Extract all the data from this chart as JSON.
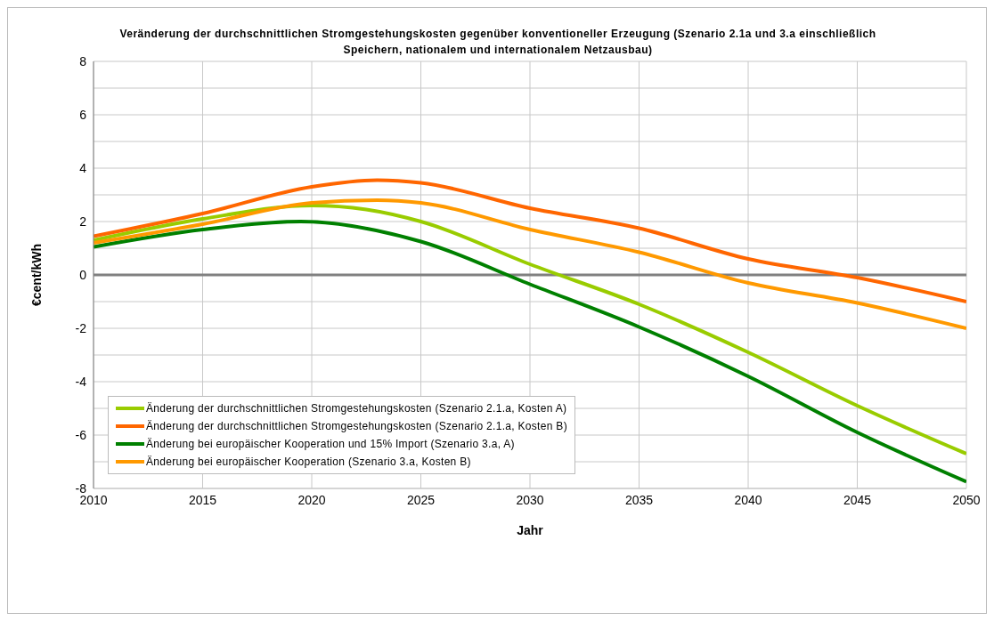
{
  "chart_data": {
    "type": "line",
    "title": "Veränderung der durchschnittlichen Stromgestehungskosten gegenüber konventioneller Erzeugung (Szenario 2.1a und 3.a einschließlich Speichern, nationalem und internationalem Netzausbau)",
    "xlabel": "Jahr",
    "ylabel": "€cent/kWh",
    "xlim": [
      2010,
      2050
    ],
    "xticks": [
      2010,
      2015,
      2020,
      2025,
      2030,
      2035,
      2040,
      2045,
      2050
    ],
    "ylim": [
      -8,
      8
    ],
    "yticks": [
      -8,
      {
        "value": -7,
        "label": null
      },
      -6,
      {
        "value": -5,
        "label": null
      },
      -4,
      {
        "value": -3,
        "label": null
      },
      -2,
      {
        "value": -1,
        "label": null
      },
      0,
      {
        "value": 1,
        "label": null
      },
      2,
      {
        "value": 3,
        "label": null
      },
      4,
      {
        "value": 5,
        "label": null
      },
      6,
      {
        "value": 7,
        "label": null
      },
      8
    ],
    "grid": true,
    "legend": "bottom left",
    "marker": "none",
    "line_style": "solid",
    "ref_lines": [
      {
        "axis": "y",
        "value": 0,
        "color": "#808080"
      }
    ],
    "series": [
      {
        "name": "Änderung der durchschnittlichen Stromgestehungskosten (Szenario 2.1.a, Kosten A)",
        "color": "#99cc00",
        "x": [
          2010,
          2015,
          2020,
          2022.5,
          2025,
          2030,
          2035,
          2040,
          2045,
          2050
        ],
        "values": [
          1.3,
          2.1,
          2.6,
          2.45,
          2.0,
          0.4,
          -1.1,
          -2.9,
          -4.9,
          -6.7
        ]
      },
      {
        "name": "Änderung der durchschnittlichen Stromgestehungskosten (Szenario 2.1.a, Kosten B)",
        "color": "#ff6600",
        "x": [
          2010,
          2015,
          2020,
          2023,
          2025,
          2030,
          2035,
          2040,
          2045,
          2050
        ],
        "values": [
          1.45,
          2.3,
          3.3,
          3.55,
          3.45,
          2.5,
          1.75,
          0.6,
          -0.1,
          -1.0
        ]
      },
      {
        "name": "Änderung bei europäischer Kooperation und 15% Import (Szenario 3.a, A)",
        "color": "#008000",
        "x": [
          2010,
          2015,
          2019.5,
          2025,
          2030,
          2035,
          2040,
          2045,
          2050
        ],
        "values": [
          1.05,
          1.7,
          2.0,
          1.25,
          -0.35,
          -1.95,
          -3.8,
          -5.9,
          -7.75
        ]
      },
      {
        "name": "Änderung bei europäischer Kooperation (Szenario 3.a, Kosten B)",
        "color": "#ff9900",
        "x": [
          2010,
          2015,
          2020,
          2023,
          2025,
          2030,
          2035,
          2040,
          2045,
          2050
        ],
        "values": [
          1.2,
          1.9,
          2.7,
          2.8,
          2.7,
          1.7,
          0.85,
          -0.3,
          -1.05,
          -2.0
        ]
      }
    ]
  }
}
